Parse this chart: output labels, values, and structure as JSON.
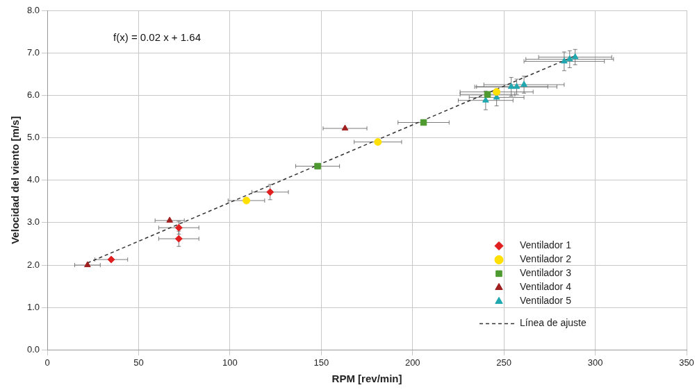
{
  "chart_data": {
    "type": "scatter",
    "xlabel": "RPM [rev/min]",
    "ylabel": "Velocidad del viento [m/s]",
    "annotations": [
      "f(x) = 0.02 x + 1.64"
    ],
    "xlim": [
      0,
      350
    ],
    "xticks": [
      0,
      50,
      100,
      150,
      200,
      250,
      300,
      350
    ],
    "ylim": [
      0,
      8
    ],
    "yticks": [
      {
        "value": 0,
        "label": "0.0"
      },
      {
        "value": 1,
        "label": "1.0"
      },
      {
        "value": 2,
        "label": "2.0"
      },
      {
        "value": 3,
        "label": "3.0"
      },
      {
        "value": 4,
        "label": "4.0"
      },
      {
        "value": 5,
        "label": "5.0"
      },
      {
        "value": 6,
        "label": "6.0"
      },
      {
        "value": 7,
        "label": "7.0"
      },
      {
        "value": 8,
        "label": "8.0"
      }
    ],
    "grid": true,
    "legend": "bottom right",
    "series": [
      {
        "name": "Ventilador 1",
        "color": "#e02020",
        "marker": "diamond",
        "x": [
          35,
          72,
          72,
          122
        ],
        "values": [
          2.13,
          2.88,
          2.62,
          3.72
        ],
        "xerrors": [
          9,
          11,
          11,
          10
        ],
        "errors": [
          null,
          0.15,
          0.18,
          0.18
        ]
      },
      {
        "name": "Ventilador 2",
        "color": "#ffe000",
        "marker": "circle",
        "x": [
          109,
          181,
          246
        ],
        "values": [
          3.52,
          4.9,
          6.08
        ],
        "xerrors": [
          10,
          13,
          20
        ],
        "errors": [
          null,
          null,
          null
        ]
      },
      {
        "name": "Ventilador 3",
        "color": "#4e9a30",
        "marker": "square",
        "x": [
          148,
          206,
          241
        ],
        "values": [
          4.33,
          5.36,
          6.02
        ],
        "xerrors": [
          12,
          14,
          15
        ],
        "errors": [
          null,
          null,
          null
        ]
      },
      {
        "name": "Ventilador 4",
        "color": "#a02020",
        "marker": "triangle",
        "x": [
          22,
          67,
          163
        ],
        "values": [
          2.0,
          3.05,
          5.22
        ],
        "xerrors": [
          7,
          8,
          12
        ],
        "errors": [
          null,
          null,
          null
        ]
      },
      {
        "name": "Ventilador 5",
        "color": "#20a8b0",
        "marker": "triangle",
        "x": [
          240,
          246,
          254,
          257,
          261,
          283,
          286,
          289
        ],
        "values": [
          5.88,
          5.95,
          6.2,
          6.2,
          6.25,
          6.8,
          6.85,
          6.9
        ],
        "xerrors": [
          15,
          15,
          20,
          22,
          22,
          22,
          24,
          20
        ],
        "errors": [
          0.22,
          0.2,
          0.22,
          0.18,
          0.2,
          0.22,
          0.2,
          0.18
        ]
      },
      {
        "name": "Línea de ajuste",
        "type": "line",
        "color": "#333333",
        "marker": "none",
        "line_style": "dashed",
        "x": [
          22,
          289
        ],
        "values": [
          2.05,
          6.93
        ]
      }
    ]
  }
}
